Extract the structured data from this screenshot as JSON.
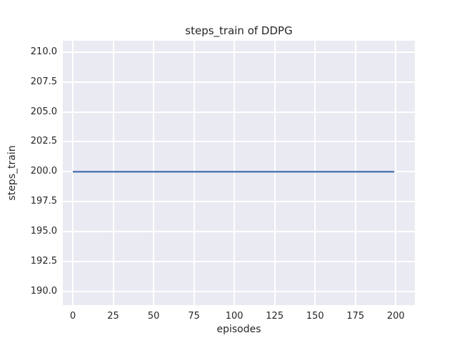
{
  "chart_data": {
    "type": "line",
    "title": "steps_train of DDPG",
    "xlabel": "episodes",
    "ylabel": "steps_train",
    "x_ticks": [
      0,
      25,
      50,
      75,
      100,
      125,
      150,
      175,
      200
    ],
    "x_tick_labels": [
      "0",
      "25",
      "50",
      "75",
      "100",
      "125",
      "150",
      "175",
      "200"
    ],
    "y_ticks": [
      190.0,
      192.5,
      195.0,
      197.5,
      200.0,
      202.5,
      205.0,
      207.5,
      210.0
    ],
    "y_tick_labels": [
      "190.0",
      "192.5",
      "195.0",
      "197.5",
      "200.0",
      "202.5",
      "205.0",
      "207.5",
      "210.0"
    ],
    "xlim": [
      -6.2,
      211.8
    ],
    "ylim": [
      188.85,
      210.95
    ],
    "grid": true,
    "legend": "none",
    "plot_background": "#EAEAF2",
    "grid_color": "#FFFFFF",
    "text_color": "#262626",
    "series": [
      {
        "name": "steps_train",
        "color": "#4C72B0",
        "x": [
          0,
          199
        ],
        "y": [
          200,
          200
        ]
      }
    ]
  }
}
